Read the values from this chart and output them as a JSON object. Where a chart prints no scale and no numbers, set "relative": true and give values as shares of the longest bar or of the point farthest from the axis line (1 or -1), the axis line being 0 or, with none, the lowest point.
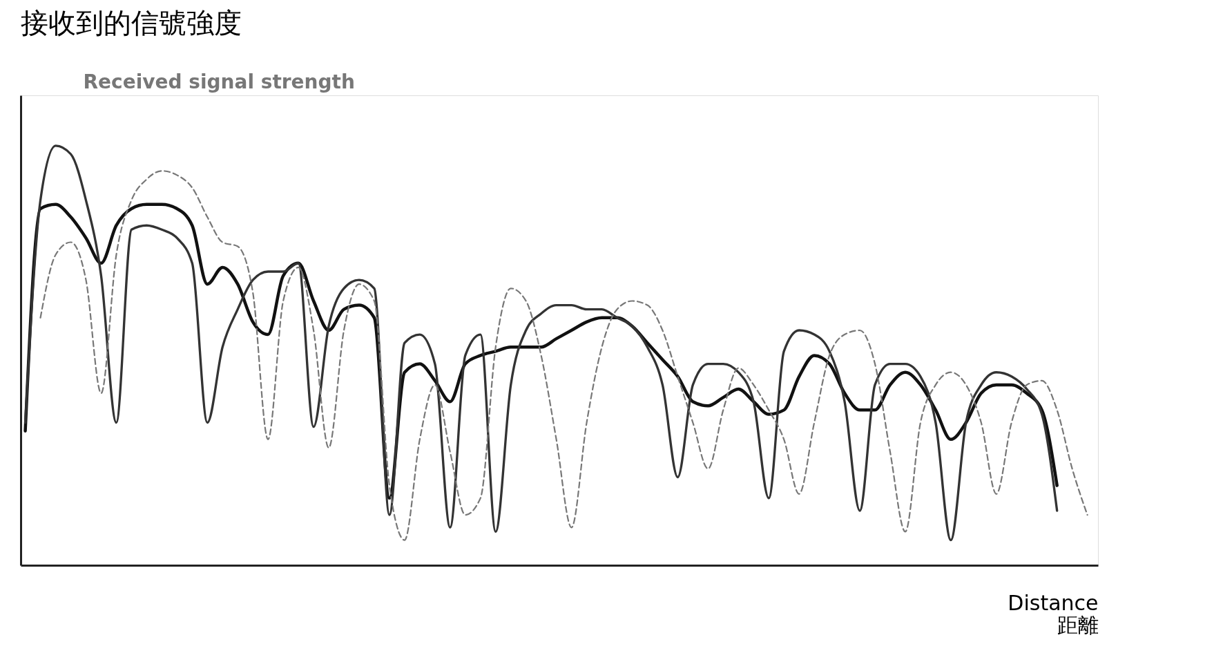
{
  "chart_data": {
    "type": "line",
    "title": "接收到的信號強度",
    "ylabel": "Received signal strength",
    "xlabel": "Distance\n距離",
    "relative": true,
    "tick_labels": false,
    "grid": false,
    "legend": false,
    "marker": "none",
    "categories": [
      null,
      null,
      null,
      null,
      null,
      null,
      null,
      null,
      null,
      null,
      null,
      null,
      null,
      null,
      null,
      null,
      null,
      null,
      null,
      null,
      null,
      null,
      null,
      null,
      null,
      null,
      null,
      null,
      null,
      null,
      null,
      null,
      null,
      null,
      null,
      null,
      null,
      null,
      null,
      null,
      null,
      null,
      null,
      null,
      null,
      null,
      null,
      null,
      null,
      null,
      null,
      null,
      null,
      null,
      null,
      null,
      null,
      null,
      null,
      null,
      null,
      null,
      null,
      null,
      null,
      null,
      null,
      null,
      null,
      null,
      null
    ],
    "series": [
      {
        "color": "#111111",
        "line_style": "solid",
        "values": [
          0.32,
          0.85,
          0.86,
          0.83,
          0.78,
          0.72,
          0.81,
          0.85,
          0.86,
          0.86,
          0.85,
          0.81,
          0.67,
          0.71,
          0.67,
          0.58,
          0.55,
          0.69,
          0.72,
          0.63,
          0.56,
          0.61,
          0.62,
          0.59,
          0.16,
          0.46,
          0.48,
          0.44,
          0.39,
          0.48,
          0.5,
          0.51,
          0.52,
          0.52,
          0.52,
          0.54,
          0.56,
          0.58,
          0.59,
          0.59,
          0.57,
          0.53,
          0.49,
          0.45,
          0.39,
          0.38,
          0.4,
          0.42,
          0.39,
          0.36,
          0.37,
          0.45,
          0.5,
          0.48,
          0.41,
          0.37,
          0.37,
          0.43,
          0.46,
          0.43,
          0.37,
          0.3,
          0.34,
          0.41,
          0.43,
          0.43,
          0.41,
          0.37,
          0.19,
          null,
          null
        ]
      },
      {
        "color": "#333333",
        "line_style": "solid",
        "values": [
          0.34,
          0.87,
          1.0,
          0.98,
          0.87,
          0.69,
          0.34,
          0.8,
          0.81,
          0.8,
          0.78,
          0.72,
          0.34,
          0.52,
          0.61,
          0.68,
          0.7,
          0.7,
          0.72,
          0.33,
          0.57,
          0.66,
          0.68,
          0.66,
          0.12,
          0.53,
          0.55,
          0.48,
          0.09,
          0.5,
          0.55,
          0.08,
          0.43,
          0.56,
          0.6,
          0.62,
          0.62,
          0.61,
          0.61,
          0.59,
          0.57,
          0.52,
          0.43,
          0.21,
          0.43,
          0.48,
          0.48,
          0.46,
          0.39,
          0.16,
          0.51,
          0.56,
          0.55,
          0.51,
          0.39,
          0.13,
          0.43,
          0.48,
          0.48,
          0.45,
          0.34,
          0.06,
          0.34,
          0.43,
          0.46,
          0.45,
          0.42,
          0.36,
          0.13,
          null,
          null
        ]
      },
      {
        "color": "#777777",
        "line_style": "dashed",
        "values": [
          null,
          0.59,
          0.74,
          0.77,
          0.68,
          0.41,
          0.74,
          0.87,
          0.92,
          0.94,
          0.93,
          0.9,
          0.83,
          0.77,
          0.76,
          0.65,
          0.3,
          0.63,
          0.71,
          0.56,
          0.28,
          0.56,
          0.67,
          0.63,
          0.19,
          0.06,
          0.3,
          0.43,
          0.27,
          0.12,
          0.16,
          0.52,
          0.66,
          0.63,
          0.5,
          0.3,
          0.09,
          0.34,
          0.52,
          0.61,
          0.63,
          0.62,
          0.56,
          0.45,
          0.34,
          0.23,
          0.37,
          0.47,
          0.43,
          0.37,
          0.3,
          0.17,
          0.34,
          0.5,
          0.55,
          0.56,
          0.48,
          0.27,
          0.08,
          0.34,
          0.43,
          0.46,
          0.43,
          0.34,
          0.17,
          0.34,
          0.43,
          0.44,
          0.37,
          0.23,
          0.12
        ]
      }
    ]
  }
}
